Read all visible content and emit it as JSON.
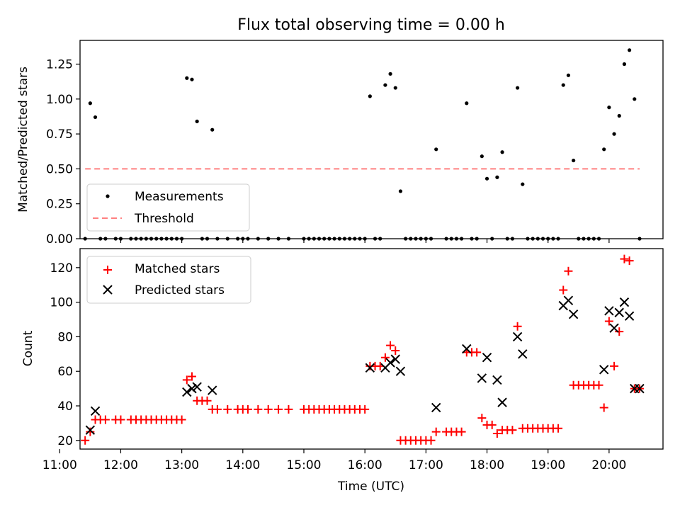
{
  "chart_data": [
    {
      "type": "scatter",
      "title": "Flux total observing time = 0.00 h",
      "xlabel": "",
      "ylabel": "Matched/Predicted stars",
      "xlim": [
        "11:20",
        "20:53"
      ],
      "ylim": [
        0,
        1.42
      ],
      "y_ticks": [
        "0.00",
        "0.25",
        "0.50",
        "0.75",
        "1.00",
        "1.25"
      ],
      "legend": {
        "position": "lower-left",
        "entries": [
          "Measurements",
          "Threshold"
        ]
      },
      "series": [
        {
          "name": "Measurements",
          "marker": "dot",
          "color": "#000000",
          "points": [
            [
              "11:25",
              0
            ],
            [
              "11:30",
              0.97
            ],
            [
              "11:35",
              0.87
            ],
            [
              "11:40",
              0
            ],
            [
              "11:45",
              0
            ],
            [
              "11:55",
              0
            ],
            [
              "12:00",
              0
            ],
            [
              "12:10",
              0
            ],
            [
              "12:15",
              0
            ],
            [
              "12:20",
              0
            ],
            [
              "12:25",
              0
            ],
            [
              "12:30",
              0
            ],
            [
              "12:35",
              0
            ],
            [
              "12:40",
              0
            ],
            [
              "12:45",
              0
            ],
            [
              "12:50",
              0
            ],
            [
              "12:55",
              0
            ],
            [
              "13:00",
              0
            ],
            [
              "13:05",
              1.15
            ],
            [
              "13:10",
              1.14
            ],
            [
              "13:15",
              0.84
            ],
            [
              "13:20",
              0
            ],
            [
              "13:25",
              0
            ],
            [
              "13:30",
              0.78
            ],
            [
              "13:35",
              0
            ],
            [
              "13:45",
              0
            ],
            [
              "13:55",
              0
            ],
            [
              "14:00",
              0
            ],
            [
              "14:05",
              0
            ],
            [
              "14:15",
              0
            ],
            [
              "14:25",
              0
            ],
            [
              "14:35",
              0
            ],
            [
              "14:45",
              0
            ],
            [
              "15:00",
              0
            ],
            [
              "15:05",
              0
            ],
            [
              "15:10",
              0
            ],
            [
              "15:15",
              0
            ],
            [
              "15:20",
              0
            ],
            [
              "15:25",
              0
            ],
            [
              "15:30",
              0
            ],
            [
              "15:35",
              0
            ],
            [
              "15:40",
              0
            ],
            [
              "15:45",
              0
            ],
            [
              "15:50",
              0
            ],
            [
              "15:55",
              0
            ],
            [
              "16:00",
              0
            ],
            [
              "16:05",
              1.02
            ],
            [
              "16:10",
              0
            ],
            [
              "16:15",
              0
            ],
            [
              "16:20",
              1.1
            ],
            [
              "16:25",
              1.18
            ],
            [
              "16:30",
              1.08
            ],
            [
              "16:35",
              0.34
            ],
            [
              "16:40",
              0
            ],
            [
              "16:45",
              0
            ],
            [
              "16:50",
              0
            ],
            [
              "16:55",
              0
            ],
            [
              "17:00",
              0
            ],
            [
              "17:05",
              0
            ],
            [
              "17:10",
              0.64
            ],
            [
              "17:20",
              0
            ],
            [
              "17:25",
              0
            ],
            [
              "17:30",
              0
            ],
            [
              "17:35",
              0
            ],
            [
              "17:40",
              0.97
            ],
            [
              "17:45",
              0
            ],
            [
              "17:50",
              0
            ],
            [
              "17:55",
              0.59
            ],
            [
              "18:00",
              0.43
            ],
            [
              "18:05",
              0
            ],
            [
              "18:10",
              0.44
            ],
            [
              "18:15",
              0.62
            ],
            [
              "18:20",
              0
            ],
            [
              "18:25",
              0
            ],
            [
              "18:30",
              1.08
            ],
            [
              "18:35",
              0.39
            ],
            [
              "18:40",
              0
            ],
            [
              "18:45",
              0
            ],
            [
              "18:50",
              0
            ],
            [
              "18:55",
              0
            ],
            [
              "19:00",
              0
            ],
            [
              "19:05",
              0
            ],
            [
              "19:10",
              0
            ],
            [
              "19:15",
              1.1
            ],
            [
              "19:20",
              1.17
            ],
            [
              "19:25",
              0.56
            ],
            [
              "19:30",
              0
            ],
            [
              "19:35",
              0
            ],
            [
              "19:40",
              0
            ],
            [
              "19:45",
              0
            ],
            [
              "19:50",
              0
            ],
            [
              "19:55",
              0.64
            ],
            [
              "20:00",
              0.94
            ],
            [
              "20:05",
              0.75
            ],
            [
              "20:10",
              0.88
            ],
            [
              "20:15",
              1.25
            ],
            [
              "20:20",
              1.35
            ],
            [
              "20:25",
              1.0
            ],
            [
              "20:30",
              0
            ]
          ]
        },
        {
          "name": "Threshold",
          "style": "dashed",
          "color": "#ff8080",
          "points": [
            [
              "11:25",
              0.5
            ],
            [
              "20:30",
              0.5
            ]
          ]
        }
      ]
    },
    {
      "type": "scatter",
      "title": "",
      "xlabel": "Time (UTC)",
      "ylabel": "Count",
      "xlim": [
        "11:20",
        "20:53"
      ],
      "ylim": [
        15,
        131
      ],
      "x_ticks": [
        "11:00",
        "12:00",
        "13:00",
        "14:00",
        "15:00",
        "16:00",
        "17:00",
        "18:00",
        "19:00",
        "20:00"
      ],
      "y_ticks": [
        "20",
        "40",
        "60",
        "80",
        "100",
        "120"
      ],
      "legend": {
        "position": "upper-left",
        "entries": [
          "Matched stars",
          "Predicted stars"
        ]
      },
      "series": [
        {
          "name": "Matched stars",
          "marker": "plus",
          "color": "#ff0000",
          "points": [
            [
              "11:25",
              20
            ],
            [
              "11:30",
              25
            ],
            [
              "11:35",
              32
            ],
            [
              "11:40",
              32
            ],
            [
              "11:45",
              32
            ],
            [
              "11:55",
              32
            ],
            [
              "12:00",
              32
            ],
            [
              "12:10",
              32
            ],
            [
              "12:15",
              32
            ],
            [
              "12:20",
              32
            ],
            [
              "12:25",
              32
            ],
            [
              "12:30",
              32
            ],
            [
              "12:35",
              32
            ],
            [
              "12:40",
              32
            ],
            [
              "12:45",
              32
            ],
            [
              "12:50",
              32
            ],
            [
              "12:55",
              32
            ],
            [
              "13:00",
              32
            ],
            [
              "13:05",
              55
            ],
            [
              "13:10",
              57
            ],
            [
              "13:15",
              43
            ],
            [
              "13:20",
              43
            ],
            [
              "13:25",
              43
            ],
            [
              "13:30",
              38
            ],
            [
              "13:35",
              38
            ],
            [
              "13:45",
              38
            ],
            [
              "13:55",
              38
            ],
            [
              "14:00",
              38
            ],
            [
              "14:05",
              38
            ],
            [
              "14:15",
              38
            ],
            [
              "14:25",
              38
            ],
            [
              "14:35",
              38
            ],
            [
              "14:45",
              38
            ],
            [
              "15:00",
              38
            ],
            [
              "15:05",
              38
            ],
            [
              "15:10",
              38
            ],
            [
              "15:15",
              38
            ],
            [
              "15:20",
              38
            ],
            [
              "15:25",
              38
            ],
            [
              "15:30",
              38
            ],
            [
              "15:35",
              38
            ],
            [
              "15:40",
              38
            ],
            [
              "15:45",
              38
            ],
            [
              "15:50",
              38
            ],
            [
              "15:55",
              38
            ],
            [
              "16:00",
              38
            ],
            [
              "16:05",
              63
            ],
            [
              "16:10",
              63
            ],
            [
              "16:15",
              63
            ],
            [
              "16:20",
              68
            ],
            [
              "16:25",
              75
            ],
            [
              "16:30",
              72
            ],
            [
              "16:35",
              20
            ],
            [
              "16:40",
              20
            ],
            [
              "16:45",
              20
            ],
            [
              "16:50",
              20
            ],
            [
              "16:55",
              20
            ],
            [
              "17:00",
              20
            ],
            [
              "17:05",
              20
            ],
            [
              "17:10",
              25
            ],
            [
              "17:20",
              25
            ],
            [
              "17:25",
              25
            ],
            [
              "17:30",
              25
            ],
            [
              "17:35",
              25
            ],
            [
              "17:40",
              71
            ],
            [
              "17:45",
              71
            ],
            [
              "17:50",
              71
            ],
            [
              "17:55",
              33
            ],
            [
              "18:00",
              29
            ],
            [
              "18:05",
              29
            ],
            [
              "18:10",
              24
            ],
            [
              "18:15",
              26
            ],
            [
              "18:20",
              26
            ],
            [
              "18:25",
              26
            ],
            [
              "18:30",
              86
            ],
            [
              "18:35",
              27
            ],
            [
              "18:40",
              27
            ],
            [
              "18:45",
              27
            ],
            [
              "18:50",
              27
            ],
            [
              "18:55",
              27
            ],
            [
              "19:00",
              27
            ],
            [
              "19:05",
              27
            ],
            [
              "19:10",
              27
            ],
            [
              "19:15",
              107
            ],
            [
              "19:20",
              118
            ],
            [
              "19:25",
              52
            ],
            [
              "19:30",
              52
            ],
            [
              "19:35",
              52
            ],
            [
              "19:40",
              52
            ],
            [
              "19:45",
              52
            ],
            [
              "19:50",
              52
            ],
            [
              "19:55",
              39
            ],
            [
              "20:00",
              89
            ],
            [
              "20:05",
              63
            ],
            [
              "20:10",
              83
            ],
            [
              "20:15",
              125
            ],
            [
              "20:20",
              124
            ],
            [
              "20:25",
              50
            ],
            [
              "20:30",
              50
            ]
          ]
        },
        {
          "name": "Predicted stars",
          "marker": "x",
          "color": "#000000",
          "points": [
            [
              "11:30",
              26
            ],
            [
              "11:35",
              37
            ],
            [
              "13:05",
              48
            ],
            [
              "13:10",
              50
            ],
            [
              "13:15",
              51
            ],
            [
              "13:30",
              49
            ],
            [
              "16:05",
              62
            ],
            [
              "16:20",
              62
            ],
            [
              "16:25",
              65
            ],
            [
              "16:30",
              67
            ],
            [
              "16:35",
              60
            ],
            [
              "17:10",
              39
            ],
            [
              "17:40",
              73
            ],
            [
              "17:55",
              56
            ],
            [
              "18:00",
              68
            ],
            [
              "18:10",
              55
            ],
            [
              "18:15",
              42
            ],
            [
              "18:30",
              80
            ],
            [
              "18:35",
              70
            ],
            [
              "19:15",
              98
            ],
            [
              "19:20",
              101
            ],
            [
              "19:25",
              93
            ],
            [
              "19:55",
              61
            ],
            [
              "20:00",
              95
            ],
            [
              "20:05",
              85
            ],
            [
              "20:10",
              94
            ],
            [
              "20:15",
              100
            ],
            [
              "20:20",
              92
            ],
            [
              "20:25",
              50
            ],
            [
              "20:30",
              50
            ]
          ]
        }
      ]
    }
  ]
}
